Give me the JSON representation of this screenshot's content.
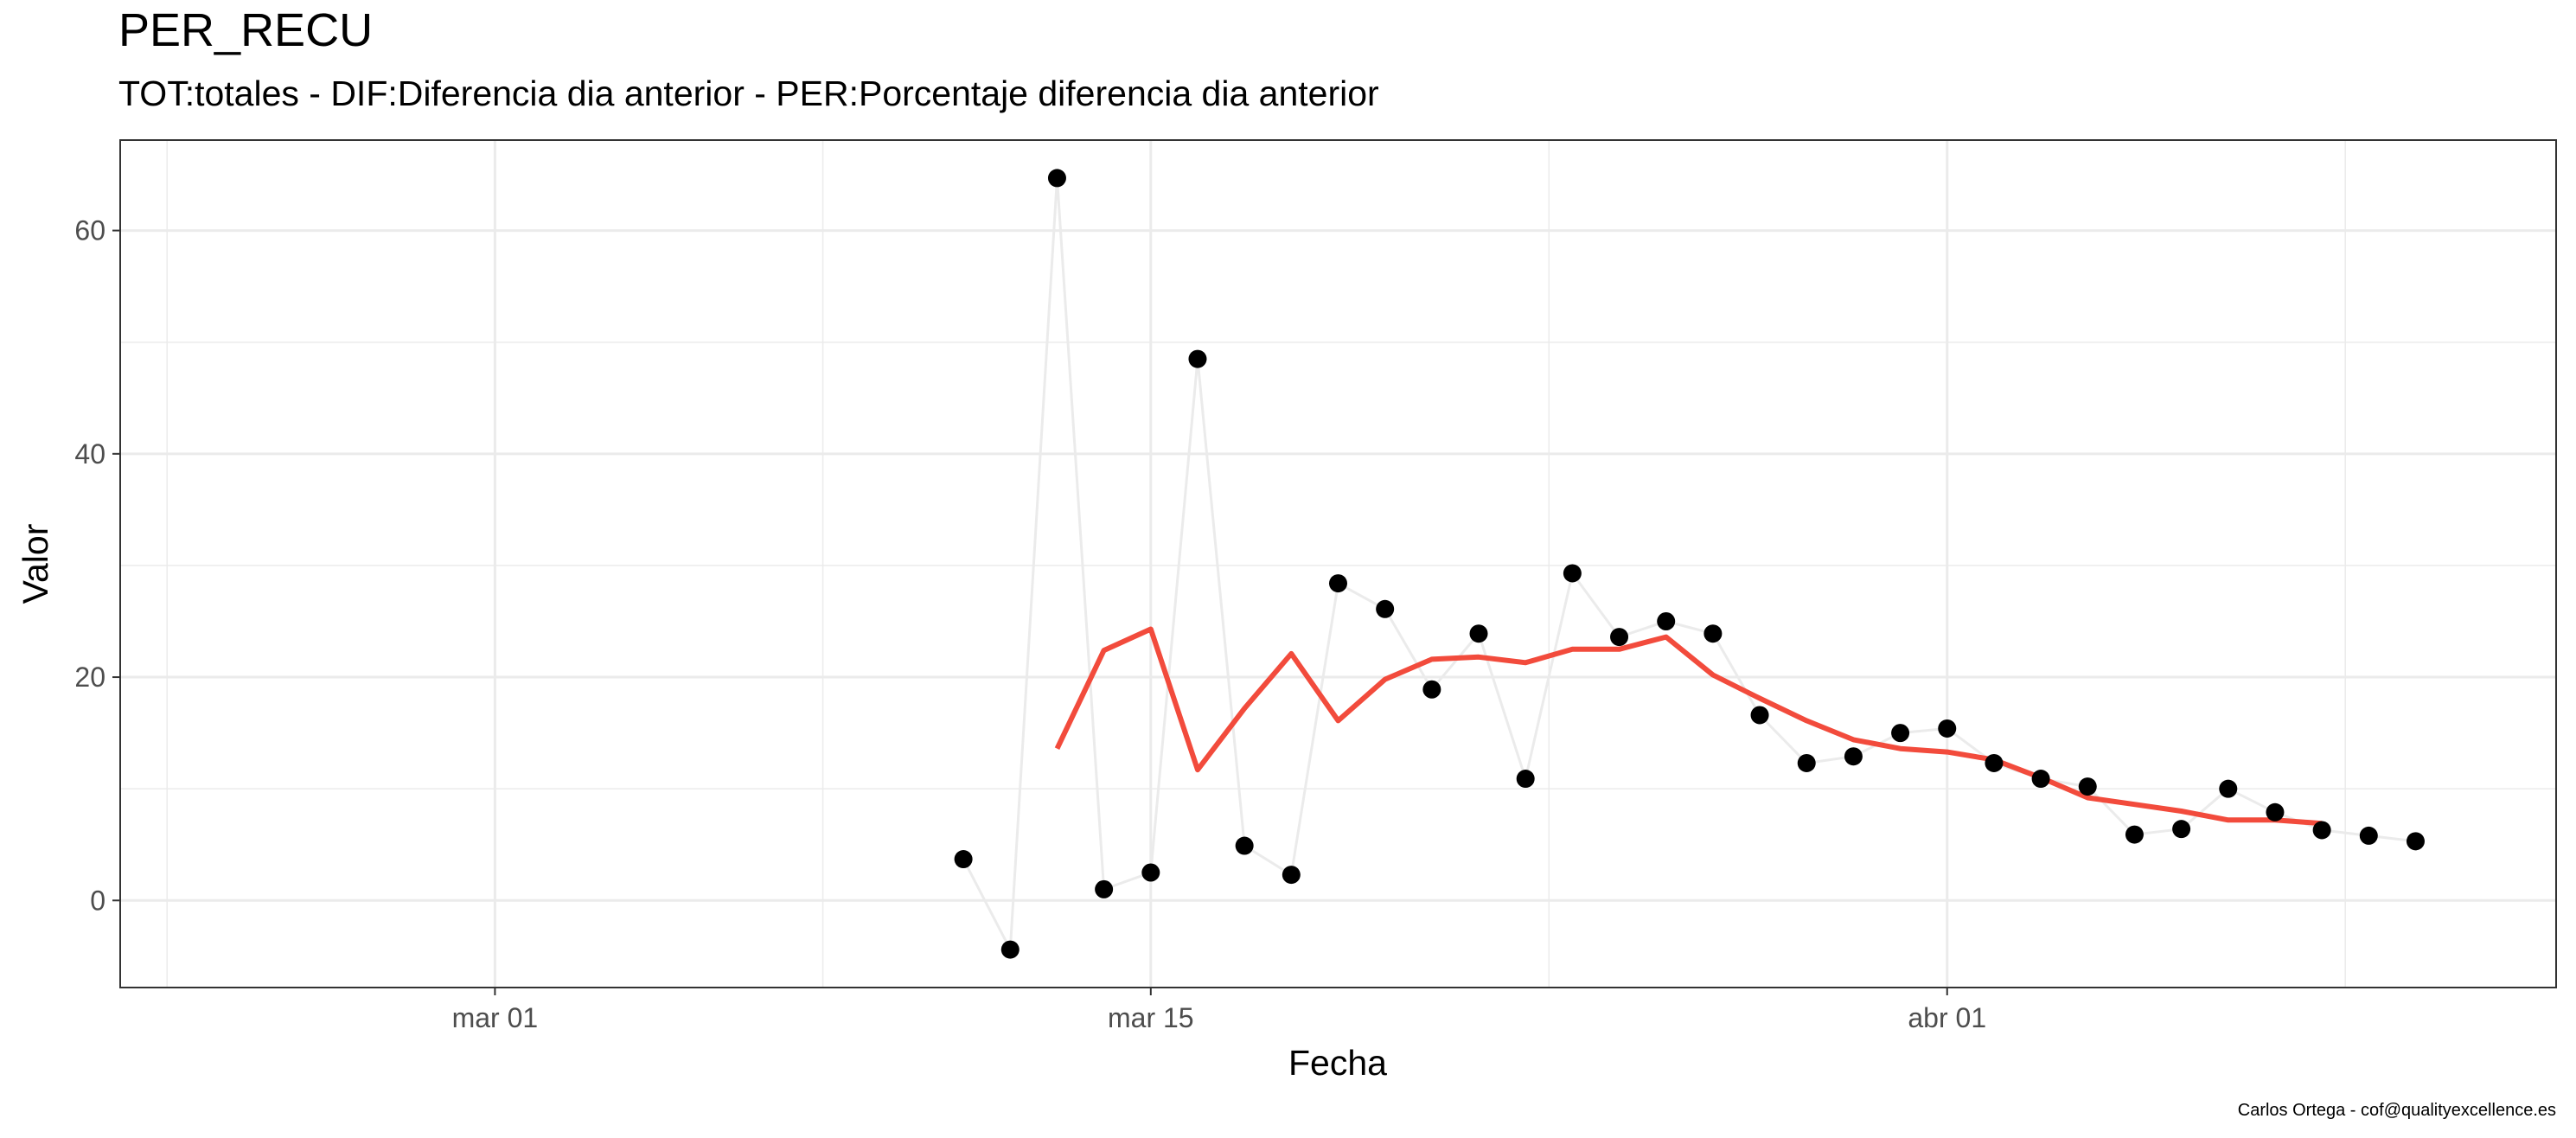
{
  "chart_data": {
    "type": "line",
    "title": "PER_RECU",
    "subtitle": "TOT:totales - DIF:Diferencia dia anterior - PER:Porcentaje diferencia dia anterior",
    "xlabel": "Fecha",
    "ylabel": "Valor",
    "caption": "Carlos Ortega - cof@qualityexcellence.es",
    "x_tick_labels": [
      "mar 01",
      "mar 15",
      "abr 01"
    ],
    "x_ticks": [
      "2020-03-01",
      "2020-03-15",
      "2020-04-01"
    ],
    "y_ticks": [
      0,
      20,
      40,
      60
    ],
    "xlim": [
      "2020-02-22",
      "2020-04-14"
    ],
    "ylim": [
      -7.8,
      68.1
    ],
    "grid": true,
    "colors": {
      "points": "#000000",
      "raw_line": "#ebebeb",
      "smooth_line": "#f24b3c",
      "grid": "#ebebeb"
    },
    "series": [
      {
        "style": "points_with_line",
        "x": [
          "2020-03-11",
          "2020-03-12",
          "2020-03-13",
          "2020-03-14",
          "2020-03-15",
          "2020-03-16",
          "2020-03-17",
          "2020-03-18",
          "2020-03-19",
          "2020-03-20",
          "2020-03-21",
          "2020-03-22",
          "2020-03-23",
          "2020-03-24",
          "2020-03-25",
          "2020-03-26",
          "2020-03-27",
          "2020-03-28",
          "2020-03-29",
          "2020-03-30",
          "2020-03-31",
          "2020-04-01",
          "2020-04-02",
          "2020-04-03",
          "2020-04-04",
          "2020-04-05",
          "2020-04-06",
          "2020-04-07",
          "2020-04-08",
          "2020-04-09",
          "2020-04-10",
          "2020-04-11"
        ],
        "values": [
          3.7,
          -4.4,
          64.7,
          1.0,
          2.5,
          48.5,
          4.9,
          2.3,
          28.4,
          26.1,
          18.9,
          23.9,
          10.9,
          29.3,
          23.6,
          25.0,
          23.9,
          16.6,
          12.3,
          12.9,
          15.0,
          15.4,
          12.3,
          10.9,
          10.2,
          5.9,
          6.4,
          10.0,
          7.9,
          6.3,
          5.8,
          5.3
        ]
      },
      {
        "style": "smooth_line",
        "x": [
          "2020-03-13",
          "2020-03-14",
          "2020-03-15",
          "2020-03-16",
          "2020-03-17",
          "2020-03-18",
          "2020-03-19",
          "2020-03-20",
          "2020-03-21",
          "2020-03-22",
          "2020-03-23",
          "2020-03-24",
          "2020-03-25",
          "2020-03-26",
          "2020-03-27",
          "2020-03-28",
          "2020-03-29",
          "2020-03-30",
          "2020-03-31",
          "2020-04-01",
          "2020-04-02",
          "2020-04-03",
          "2020-04-04",
          "2020-04-05",
          "2020-04-06",
          "2020-04-07",
          "2020-04-08",
          "2020-04-09"
        ],
        "values": [
          13.6,
          22.4,
          24.3,
          11.7,
          17.2,
          22.1,
          16.1,
          19.8,
          21.6,
          21.8,
          21.3,
          22.5,
          22.5,
          23.6,
          20.2,
          18.1,
          16.1,
          14.4,
          13.6,
          13.3,
          12.6,
          11.0,
          9.2,
          8.6,
          8.0,
          7.2,
          7.2,
          6.9
        ]
      }
    ]
  }
}
